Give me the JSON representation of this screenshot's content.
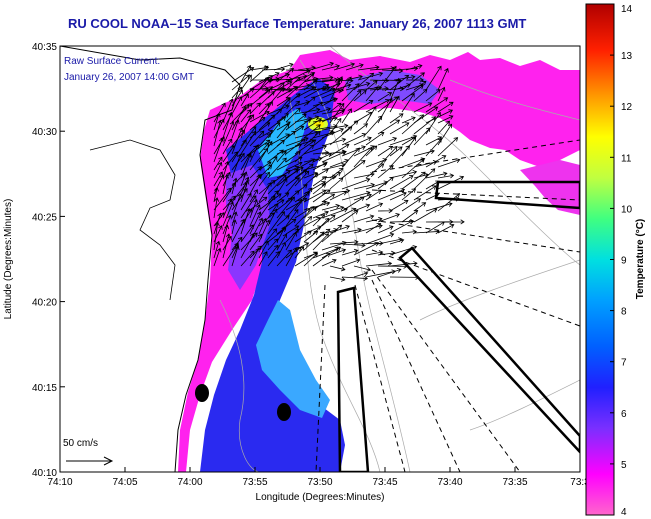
{
  "title": "RU COOL  NOAA–15  Sea Surface Temperature:  January 26, 2007 1113 GMT",
  "annotation_line1": "Raw Surface Current:",
  "annotation_line2": "January 26, 2007 14:00 GMT",
  "scale_label": "50 cm/s",
  "colorbar": {
    "label": "Temperature (°C)",
    "ticks": [
      "14",
      "13",
      "12",
      "11",
      "10",
      "9",
      "8",
      "7",
      "6",
      "5",
      "4"
    ],
    "min": 4,
    "max": 14,
    "colors": [
      "#ff66cc",
      "#ff00ff",
      "#7a2fff",
      "#2020ff",
      "#0060ff",
      "#00a0ff",
      "#00e0e0",
      "#40ff80",
      "#c0ff40",
      "#ffff00",
      "#ff9900",
      "#ff2000",
      "#b00000"
    ]
  },
  "chart_data": {
    "type": "map",
    "title": "RU COOL  NOAA–15  Sea Surface Temperature:  January 26, 2007 1113 GMT",
    "xlabel": "Longitude (Degrees:Minutes)",
    "ylabel": "Latitude (Degrees:Minutes)",
    "xticks": [
      "74:10",
      "74:05",
      "74:00",
      "73:55",
      "73:50",
      "73:45",
      "73:40",
      "73:35",
      "73:3"
    ],
    "yticks": [
      "40:35",
      "40:30",
      "40:25",
      "40:20",
      "40:15",
      "40:10"
    ],
    "color_scale_range_C": [
      4,
      14
    ]
  }
}
